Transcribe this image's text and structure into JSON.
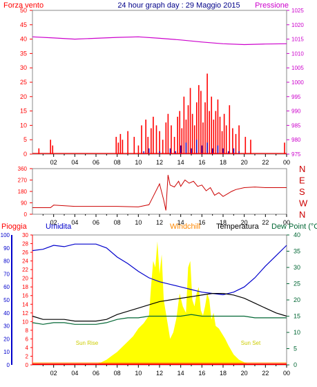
{
  "header": {
    "left_label": "Forza vento",
    "title": "24 hour graph day : 29 Maggio 2015",
    "right_label": "Pressione"
  },
  "colors": {
    "wind": "#ff0000",
    "gust": "#cc0000",
    "wind_avg": "#0000cc",
    "pressure": "#cc00cc",
    "direction": "#cc0000",
    "rain": "#ff0000",
    "humidity": "#0000cc",
    "windchill": "#ff8800",
    "temperature": "#000000",
    "dewpoint": "#006633",
    "solar": "#ffff00",
    "title": "#000088"
  },
  "chart_data": [
    {
      "type": "bar",
      "name": "wind-pressure",
      "x_ticks": [
        "02",
        "04",
        "06",
        "08",
        "10",
        "12",
        "14",
        "16",
        "18",
        "20",
        "22",
        "00"
      ],
      "left_axis": {
        "label": "Forza vento",
        "ticks": [
          0,
          5,
          10,
          15,
          20,
          25,
          30,
          35,
          40,
          45,
          50
        ],
        "ylim": [
          0,
          50
        ]
      },
      "right_axis": {
        "label": "Pressione",
        "ticks": [
          975,
          980,
          985,
          990,
          995,
          1000,
          1005,
          1010,
          1015,
          1020,
          1025
        ],
        "ylim": [
          975,
          1025
        ]
      },
      "wind_gusts_hours": [
        0.6,
        1.7,
        1.9,
        7.9,
        8.1,
        8.3,
        8.5,
        9.0,
        9.6,
        10.0,
        10.3,
        10.7,
        10.9,
        11.2,
        11.4,
        11.7,
        12.0,
        12.3,
        12.6,
        12.8,
        13.1,
        13.4,
        13.7,
        13.9,
        14.1,
        14.3,
        14.5,
        14.7,
        14.9,
        15.1,
        15.3,
        15.5,
        15.7,
        15.9,
        16.1,
        16.3,
        16.5,
        16.7,
        16.9,
        17.1,
        17.3,
        17.5,
        17.7,
        17.9,
        18.1,
        18.3,
        18.6,
        18.9,
        19.2,
        19.5,
        20.1,
        20.6,
        23.8
      ],
      "wind_gusts_values": [
        2,
        5,
        3,
        6,
        4,
        7,
        5,
        8,
        6,
        3,
        10,
        12,
        6,
        9,
        13,
        10,
        8,
        5,
        11,
        14,
        10,
        6,
        13,
        15,
        9,
        20,
        12,
        17,
        23,
        14,
        10,
        18,
        24,
        22,
        11,
        18,
        28,
        15,
        20,
        12,
        15,
        19,
        13,
        8,
        14,
        10,
        17,
        9,
        7,
        10,
        6,
        5,
        4
      ],
      "wind_avg_hours": [
        10.5,
        11.0,
        12.0,
        13.0,
        13.5,
        14.0,
        14.5,
        15.0,
        15.5,
        16.0,
        16.5,
        17.0,
        17.5,
        18.0,
        18.5,
        19.0,
        19.5
      ],
      "wind_avg_values": [
        1,
        2,
        1,
        2,
        1,
        3,
        4,
        2,
        5,
        3,
        4,
        2,
        3,
        2,
        1,
        2,
        1
      ],
      "pressure_hours": [
        0,
        2,
        4,
        6,
        8,
        10,
        12,
        14,
        16,
        18,
        20,
        22,
        24
      ],
      "pressure_values": [
        1015.8,
        1015.4,
        1015.0,
        1015.3,
        1015.6,
        1015.8,
        1015.3,
        1014.7,
        1014.0,
        1013.4,
        1013.1,
        1013.3,
        1013.4
      ]
    },
    {
      "type": "line",
      "name": "wind-direction",
      "x_ticks": [
        "02",
        "04",
        "06",
        "08",
        "10",
        "12",
        "14",
        "16",
        "18",
        "20",
        "22",
        "00"
      ],
      "left_axis": {
        "ticks": [
          0,
          90,
          180,
          270,
          360
        ],
        "ylim": [
          0,
          360
        ]
      },
      "right_axis": {
        "ticks": [
          "N",
          "W",
          "S",
          "E",
          "N"
        ]
      },
      "hours": [
        0,
        1.7,
        2.0,
        4.0,
        6.0,
        8.0,
        10.0,
        11.0,
        11.4,
        12.0,
        12.4,
        12.6,
        12.8,
        13.0,
        13.4,
        13.8,
        14.0,
        14.4,
        14.8,
        15.2,
        15.6,
        16.0,
        16.4,
        16.8,
        17.2,
        17.6,
        18.0,
        18.4,
        18.8,
        19.2,
        20.0,
        21.0,
        22.0,
        24.0
      ],
      "values": [
        52,
        52,
        72,
        62,
        62,
        62,
        58,
        75,
        140,
        240,
        110,
        30,
        310,
        230,
        215,
        260,
        220,
        270,
        245,
        260,
        220,
        230,
        185,
        210,
        150,
        170,
        140,
        160,
        180,
        195,
        210,
        215,
        210,
        210
      ]
    },
    {
      "type": "line",
      "name": "weather",
      "x_ticks": [
        "02",
        "04",
        "06",
        "08",
        "10",
        "12",
        "14",
        "16",
        "18",
        "20",
        "22",
        "00"
      ],
      "legend": [
        "Pioggia",
        "Umidita",
        "Windchill",
        "Temperatura",
        "Dew Point (°C"
      ],
      "annotations": [
        "Sun Rise",
        "Sun Set"
      ],
      "humidity_axis": {
        "ticks": [
          0,
          10,
          20,
          30,
          40,
          50,
          60,
          70,
          80,
          90,
          100
        ],
        "ylim": [
          0,
          100
        ]
      },
      "rain_axis": {
        "ticks": [
          0,
          2,
          4,
          6,
          8,
          10,
          12,
          14,
          16,
          18,
          20,
          22,
          24,
          26,
          28,
          30
        ],
        "ylim": [
          0,
          30
        ]
      },
      "temp_axis": {
        "ticks": [
          0,
          5,
          10,
          15,
          20,
          25,
          30,
          35,
          40
        ],
        "ylim": [
          0,
          40
        ]
      },
      "hours": [
        0,
        1,
        2,
        3,
        4,
        5,
        6,
        7,
        8,
        9,
        10,
        11,
        12,
        13,
        14,
        15,
        16,
        17,
        18,
        19,
        20,
        21,
        22,
        23,
        24
      ],
      "humidity": [
        88,
        89,
        92,
        91,
        93,
        93,
        93,
        90,
        83,
        78,
        72,
        67,
        64,
        62,
        60,
        58,
        56,
        55,
        54,
        56,
        60,
        67,
        76,
        84,
        92
      ],
      "temperature": [
        15.0,
        14.0,
        14.0,
        14.0,
        13.5,
        13.5,
        13.5,
        14.0,
        15.5,
        16.5,
        17.5,
        18.5,
        19.5,
        20.0,
        20.5,
        21.0,
        21.5,
        22.0,
        22.0,
        21.5,
        20.5,
        19.0,
        17.5,
        16.0,
        15.0
      ],
      "dewpoint": [
        13.0,
        12.5,
        13.0,
        13.0,
        12.5,
        12.5,
        12.5,
        13.0,
        14.0,
        14.5,
        14.5,
        15.0,
        15.0,
        15.0,
        15.0,
        15.5,
        15.0,
        15.0,
        15.0,
        15.0,
        15.0,
        14.5,
        14.5,
        14.5,
        14.5
      ],
      "rain": [
        0,
        0,
        0,
        0,
        0,
        0,
        0,
        0,
        0,
        0,
        0,
        0,
        0,
        0,
        0,
        0,
        0,
        0,
        0,
        0,
        0,
        0,
        0,
        0,
        0
      ],
      "solar_hours": [
        5.9,
        6.5,
        7.0,
        7.5,
        8.0,
        8.5,
        9.0,
        9.5,
        10.0,
        10.5,
        11.0,
        11.2,
        11.4,
        11.6,
        11.8,
        12.0,
        12.2,
        12.4,
        12.6,
        12.8,
        13.0,
        13.3,
        13.6,
        13.9,
        14.2,
        14.5,
        14.7,
        14.9,
        15.1,
        15.3,
        15.5,
        15.7,
        15.9,
        16.1,
        16.3,
        16.5,
        16.7,
        16.9,
        17.1,
        17.3,
        17.6,
        17.9,
        18.2,
        18.5,
        19.0,
        19.5,
        20.0,
        20.5
      ],
      "solar_values": [
        0,
        2,
        4,
        7,
        10,
        14,
        18,
        22,
        28,
        32,
        38,
        60,
        80,
        75,
        95,
        70,
        85,
        50,
        40,
        30,
        20,
        25,
        36,
        55,
        45,
        40,
        75,
        80,
        50,
        45,
        55,
        60,
        42,
        38,
        45,
        55,
        50,
        35,
        40,
        30,
        28,
        24,
        20,
        15,
        8,
        4,
        2,
        0
      ]
    }
  ]
}
